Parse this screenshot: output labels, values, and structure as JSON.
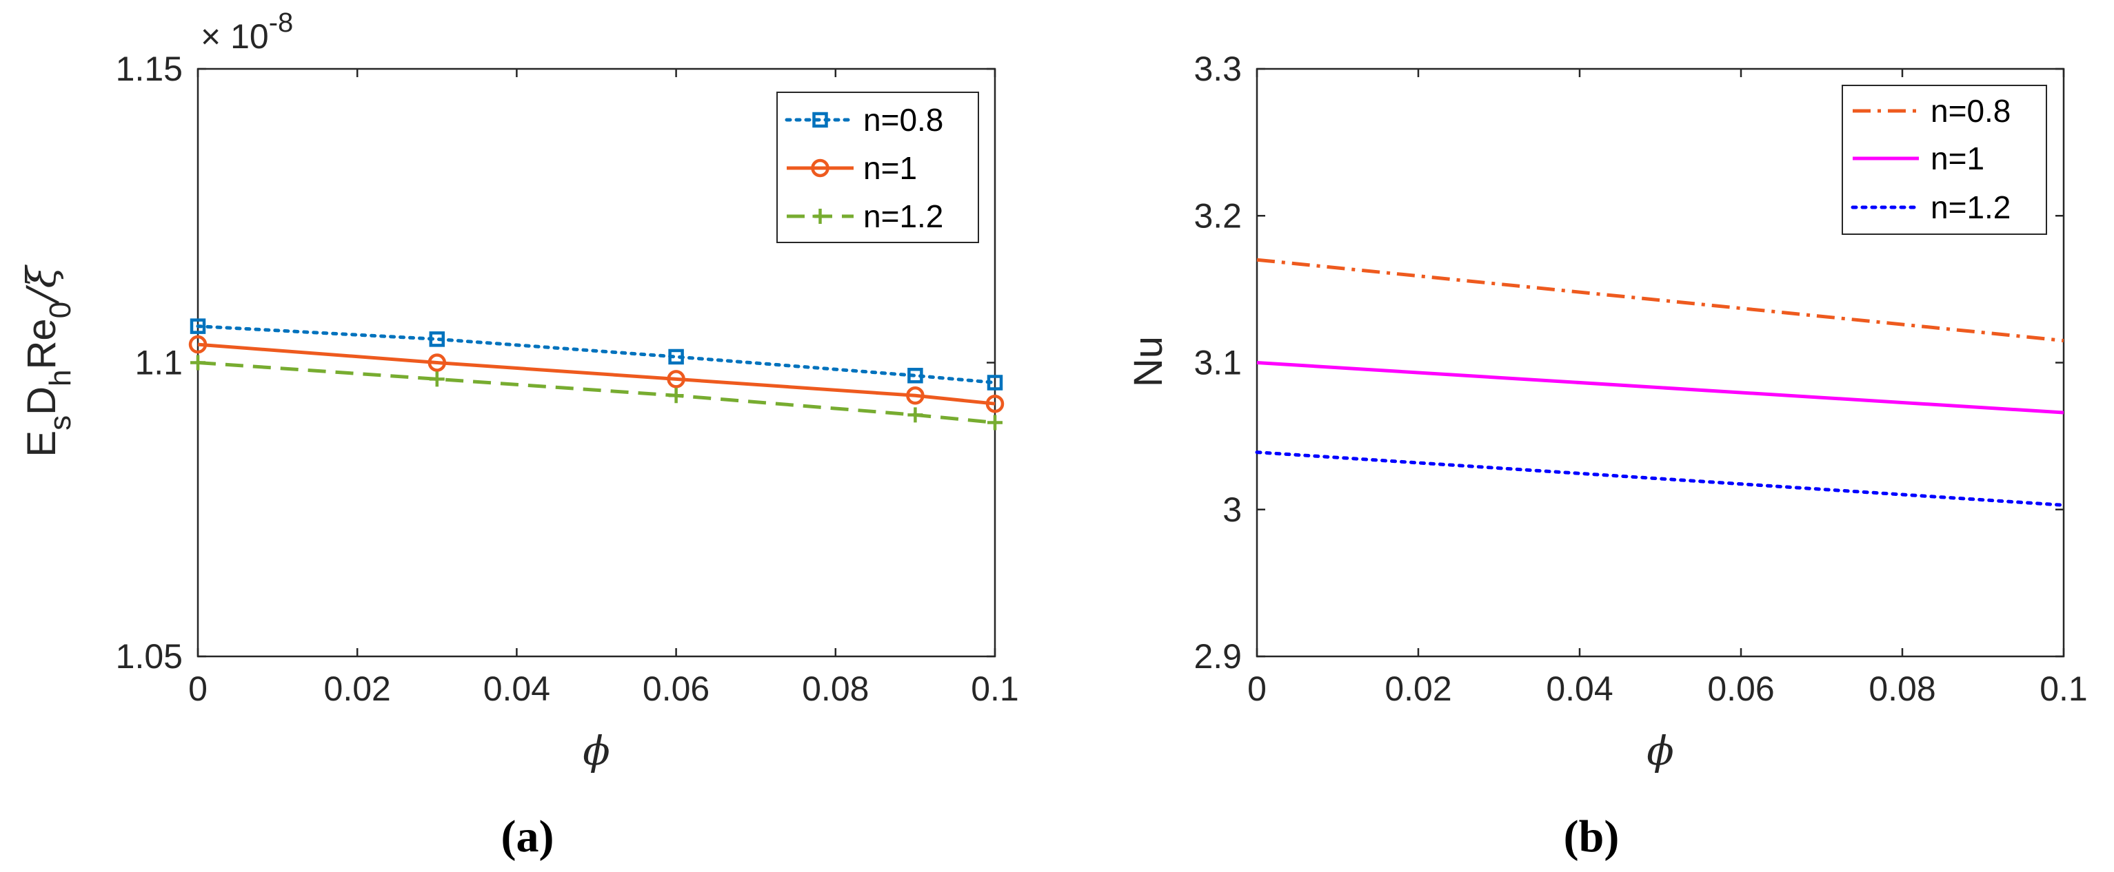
{
  "chart_data": [
    {
      "type": "line",
      "panel": "(a)",
      "xlabel": "ϕ",
      "ylabel": {
        "main1": "E",
        "sub1": "s",
        "main2": "D",
        "sub2": "h",
        "main3": "Re",
        "sub3": "0",
        "tail": "/ξ"
      },
      "exponent_base": "× 10",
      "exponent_power": "-8",
      "xlim": [
        0,
        0.1
      ],
      "ylim": [
        1.05,
        1.15
      ],
      "xticks": [
        0,
        0.02,
        0.04,
        0.06,
        0.08,
        0.1
      ],
      "xtick_labels": [
        "0",
        "0.02",
        "0.04",
        "0.06",
        "0.08",
        "0.1"
      ],
      "yticks": [
        1.05,
        1.1,
        1.15
      ],
      "ytick_labels": [
        "1.05",
        "1.1",
        "1.15"
      ],
      "legend_position": "top-right",
      "series": [
        {
          "name": "n=0.8",
          "style": "dotted",
          "marker": "square",
          "color": "#0072BD",
          "x": [
            0,
            0.03,
            0.06,
            0.09,
            0.1
          ],
          "values": [
            1.1062,
            1.104,
            1.101,
            1.0978,
            1.0966
          ]
        },
        {
          "name": "n=1",
          "style": "solid",
          "marker": "circle",
          "color": "#EE5A1E",
          "x": [
            0,
            0.03,
            0.06,
            0.09,
            0.1
          ],
          "values": [
            1.1031,
            1.1,
            1.0972,
            1.0944,
            1.093
          ]
        },
        {
          "name": "n=1.2",
          "style": "dashed",
          "marker": "plus",
          "color": "#77AC30",
          "x": [
            0,
            0.03,
            0.06,
            0.09,
            0.1
          ],
          "values": [
            1.1,
            1.0972,
            1.0944,
            1.0911,
            1.0898
          ]
        }
      ]
    },
    {
      "type": "line",
      "panel": "(b)",
      "xlabel": "ϕ",
      "ylabel": "Nu",
      "xlim": [
        0,
        0.1
      ],
      "ylim": [
        2.9,
        3.3
      ],
      "xticks": [
        0,
        0.02,
        0.04,
        0.06,
        0.08,
        0.1
      ],
      "xtick_labels": [
        "0",
        "0.02",
        "0.04",
        "0.06",
        "0.08",
        "0.1"
      ],
      "yticks": [
        2.9,
        3,
        3.1,
        3.2,
        3.3
      ],
      "ytick_labels": [
        "2.9",
        "3",
        "3.1",
        "3.2",
        "3.3"
      ],
      "legend_position": "top-right",
      "series": [
        {
          "name": "n=0.8",
          "style": "dashdot",
          "marker": "none",
          "color": "#EE5A1E",
          "x": [
            0,
            0.1
          ],
          "values": [
            3.17,
            3.115
          ]
        },
        {
          "name": "n=1",
          "style": "solid",
          "marker": "none",
          "color": "#FF00FF",
          "x": [
            0,
            0.1
          ],
          "values": [
            3.1,
            3.066
          ]
        },
        {
          "name": "n=1.2",
          "style": "dotted",
          "marker": "none",
          "color": "#0000FF",
          "x": [
            0,
            0.1
          ],
          "values": [
            3.039,
            3.003
          ]
        }
      ]
    }
  ]
}
